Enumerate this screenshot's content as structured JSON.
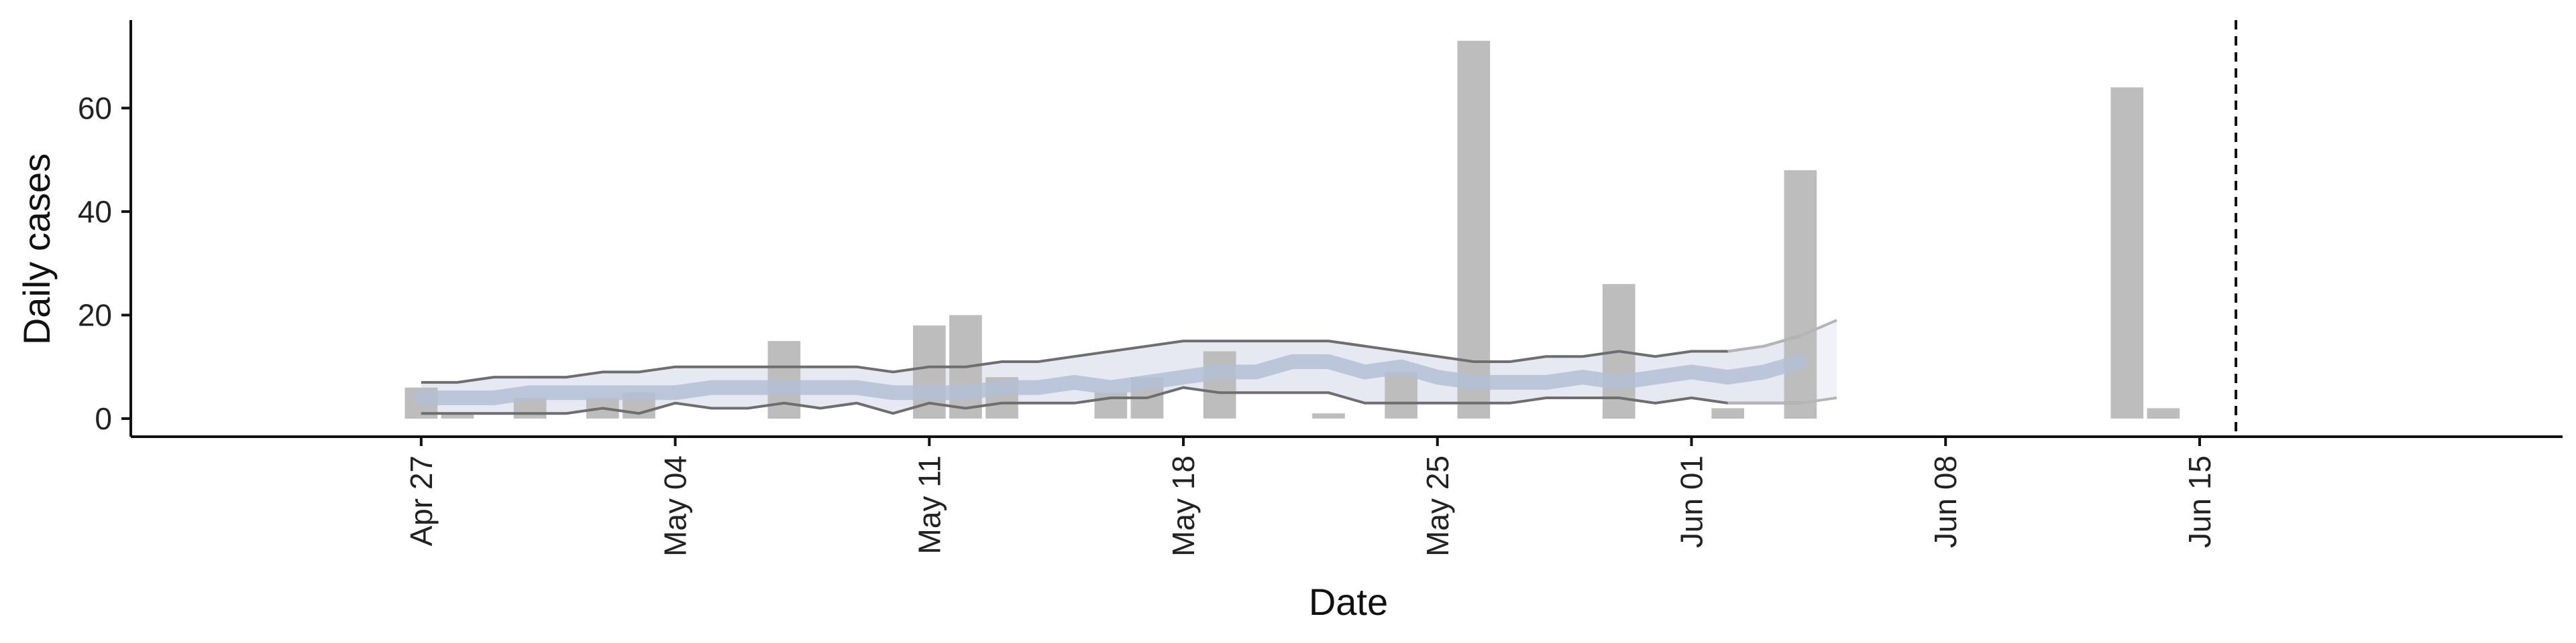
{
  "chart_data": {
    "type": "bar",
    "title": "",
    "xlabel": "Date",
    "ylabel": "Daily cases",
    "x_range": [
      "2020-04-19",
      "2020-06-25"
    ],
    "ylim": [
      -3.5,
      77
    ],
    "yticks": [
      0,
      20,
      40,
      60
    ],
    "xticks": [
      {
        "date": "2020-04-27",
        "label": "Apr 27"
      },
      {
        "date": "2020-05-04",
        "label": "May 04"
      },
      {
        "date": "2020-05-11",
        "label": "May 11"
      },
      {
        "date": "2020-05-18",
        "label": "May 18"
      },
      {
        "date": "2020-05-25",
        "label": "May 25"
      },
      {
        "date": "2020-06-01",
        "label": "Jun 01"
      },
      {
        "date": "2020-06-08",
        "label": "Jun 08"
      },
      {
        "date": "2020-06-15",
        "label": "Jun 15"
      }
    ],
    "grid": false,
    "legend": "none",
    "bars": {
      "color": "#bdbdbd",
      "dates": [
        "2020-04-27",
        "2020-04-28",
        "2020-04-30",
        "2020-05-02",
        "2020-05-03",
        "2020-05-07",
        "2020-05-11",
        "2020-05-12",
        "2020-05-13",
        "2020-05-16",
        "2020-05-17",
        "2020-05-19",
        "2020-05-22",
        "2020-05-24",
        "2020-05-26",
        "2020-05-30",
        "2020-06-01",
        "2020-06-02",
        "2020-06-04",
        "2020-06-13",
        "2020-06-14"
      ],
      "values": [
        6,
        1,
        4,
        4,
        5,
        15,
        18,
        20,
        8,
        5,
        8,
        13,
        1,
        9,
        73,
        26,
        0,
        2,
        48,
        64,
        2
      ]
    },
    "estimate": {
      "band_color": "#e6e9f2",
      "median_color": "#b4bfd6",
      "bound_color": "#6e6e6e",
      "dates": [
        "2020-04-27",
        "2020-04-28",
        "2020-04-29",
        "2020-04-30",
        "2020-05-01",
        "2020-05-02",
        "2020-05-03",
        "2020-05-04",
        "2020-05-05",
        "2020-05-06",
        "2020-05-07",
        "2020-05-08",
        "2020-05-09",
        "2020-05-10",
        "2020-05-11",
        "2020-05-12",
        "2020-05-13",
        "2020-05-14",
        "2020-05-15",
        "2020-05-16",
        "2020-05-17",
        "2020-05-18",
        "2020-05-19",
        "2020-05-20",
        "2020-05-21",
        "2020-05-22",
        "2020-05-23",
        "2020-05-24",
        "2020-05-25",
        "2020-05-26",
        "2020-05-27",
        "2020-05-28",
        "2020-05-29",
        "2020-05-30",
        "2020-05-31",
        "2020-06-01",
        "2020-06-02",
        "2020-06-03",
        "2020-06-04"
      ],
      "upper": [
        7,
        7,
        8,
        8,
        8,
        9,
        9,
        10,
        10,
        10,
        10,
        10,
        10,
        9,
        10,
        10,
        11,
        11,
        12,
        13,
        14,
        15,
        15,
        15,
        15,
        15,
        14,
        13,
        12,
        11,
        11,
        12,
        12,
        13,
        12,
        13,
        13,
        14,
        16
      ],
      "median": [
        4,
        4,
        4,
        5,
        5,
        5,
        5,
        5,
        6,
        6,
        6,
        6,
        6,
        5,
        5,
        5,
        6,
        6,
        7,
        6,
        7,
        8,
        9,
        9,
        11,
        11,
        9,
        10,
        8,
        7,
        7,
        7,
        8,
        7,
        8,
        9,
        8,
        9,
        11
      ],
      "lower": [
        1,
        1,
        1,
        1,
        1,
        2,
        1,
        3,
        2,
        2,
        3,
        2,
        3,
        1,
        3,
        2,
        3,
        3,
        3,
        4,
        4,
        6,
        5,
        5,
        5,
        5,
        3,
        3,
        3,
        3,
        3,
        4,
        4,
        4,
        3,
        4,
        3,
        3,
        3
      ],
      "outer_upper_tail": {
        "dates": [
          "2020-06-02",
          "2020-06-03",
          "2020-06-04",
          "2020-06-05"
        ],
        "values": [
          13,
          14,
          16,
          19
        ]
      },
      "outer_lower_tail": {
        "dates": [
          "2020-06-02",
          "2020-06-03",
          "2020-06-04",
          "2020-06-05"
        ],
        "values": [
          3,
          3,
          3,
          4
        ]
      }
    },
    "reference_line": {
      "date": "2020-06-16",
      "style": "dashed",
      "color": "#111111"
    }
  }
}
